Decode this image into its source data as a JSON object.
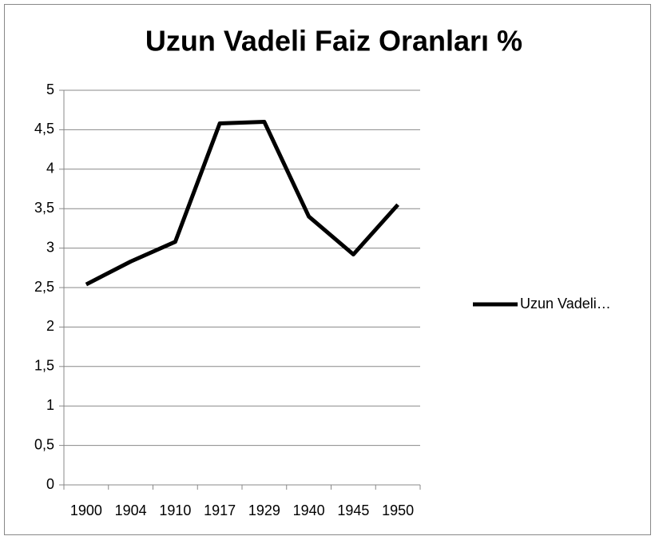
{
  "chart_data": {
    "type": "line",
    "title": "Uzun Vadeli Faiz Oranları %",
    "categories": [
      "1900",
      "1904",
      "1910",
      "1917",
      "1929",
      "1940",
      "1945",
      "1950"
    ],
    "series": [
      {
        "name": "Uzun Vadeli…",
        "color": "#000000",
        "values": [
          2.54,
          2.83,
          3.08,
          4.58,
          4.6,
          3.4,
          2.92,
          3.55
        ]
      }
    ],
    "ylim": [
      0,
      5
    ],
    "yticks": [
      0,
      {
        "value": 0.5,
        "label": "0,5"
      },
      1,
      {
        "value": 1.5,
        "label": "1,5"
      },
      2,
      {
        "value": 2.5,
        "label": "2,5"
      },
      3,
      {
        "value": 3.5,
        "label": "3,5"
      },
      4,
      {
        "value": 4.5,
        "label": "4,5"
      },
      5
    ],
    "grid": true,
    "legend": "right"
  }
}
